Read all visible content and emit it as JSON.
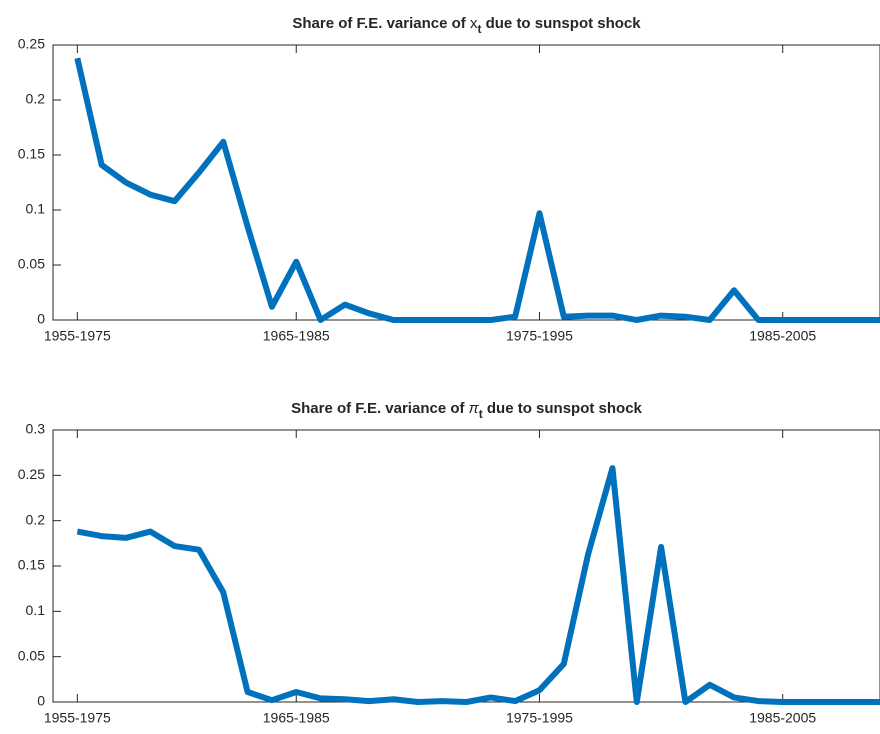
{
  "chart_data": [
    {
      "type": "line",
      "title": {
        "before": "Share of F.E. variance of ",
        "symbol": "x",
        "subscript": "t",
        "after": " due to sunspot shock"
      },
      "x": [
        1,
        2,
        3,
        4,
        5,
        6,
        7,
        8,
        9,
        10,
        11,
        12,
        13,
        14,
        15,
        16,
        17,
        18,
        19,
        20,
        21,
        22,
        23,
        24,
        25,
        26,
        27,
        28,
        29,
        30,
        31,
        32,
        33,
        34
      ],
      "series": [
        {
          "color": "#0072bd",
          "values": [
            0.238,
            0.141,
            0.125,
            0.114,
            0.108,
            0.134,
            0.162,
            0.085,
            0.012,
            0.053,
            0.0,
            0.014,
            0.006,
            0.0,
            0.0,
            0.0,
            0.0,
            0.0,
            0.003,
            0.097,
            0.003,
            0.004,
            0.004,
            0.0,
            0.004,
            0.003,
            0.0,
            0.027,
            0.0,
            0.0,
            0.0,
            0.0,
            0.0,
            0.0
          ]
        }
      ],
      "xlim": [
        0,
        34
      ],
      "xticks": [
        {
          "value": 1,
          "label": "1955-1975"
        },
        {
          "value": 10,
          "label": "1965-1985"
        },
        {
          "value": 20,
          "label": "1975-1995"
        },
        {
          "value": 30,
          "label": "1985-2005"
        }
      ],
      "ylim": [
        0,
        0.25
      ],
      "yticks": [
        0,
        0.05,
        0.1,
        0.15,
        0.2,
        0.25
      ]
    },
    {
      "type": "line",
      "title": {
        "before": "Share of F.E. variance of ",
        "symbol": "π",
        "subscript": "t",
        "after": " due to sunspot shock"
      },
      "x": [
        1,
        2,
        3,
        4,
        5,
        6,
        7,
        8,
        9,
        10,
        11,
        12,
        13,
        14,
        15,
        16,
        17,
        18,
        19,
        20,
        21,
        22,
        23,
        24,
        25,
        26,
        27,
        28,
        29,
        30,
        31,
        32,
        33,
        34
      ],
      "series": [
        {
          "color": "#0072bd",
          "values": [
            0.188,
            0.183,
            0.181,
            0.188,
            0.172,
            0.168,
            0.121,
            0.011,
            0.002,
            0.011,
            0.004,
            0.003,
            0.001,
            0.003,
            0.0,
            0.001,
            0.0,
            0.005,
            0.001,
            0.013,
            0.042,
            0.163,
            0.258,
            0.0,
            0.171,
            0.0,
            0.019,
            0.005,
            0.001,
            0.0,
            0.0,
            0.0,
            0.0,
            0.0
          ]
        }
      ],
      "xlim": [
        0,
        34
      ],
      "xticks": [
        {
          "value": 1,
          "label": "1955-1975"
        },
        {
          "value": 10,
          "label": "1965-1985"
        },
        {
          "value": 20,
          "label": "1975-1995"
        },
        {
          "value": 30,
          "label": "1985-2005"
        }
      ],
      "ylim": [
        0,
        0.3
      ],
      "yticks": [
        0,
        0.05,
        0.1,
        0.15,
        0.2,
        0.25,
        0.3
      ]
    }
  ]
}
